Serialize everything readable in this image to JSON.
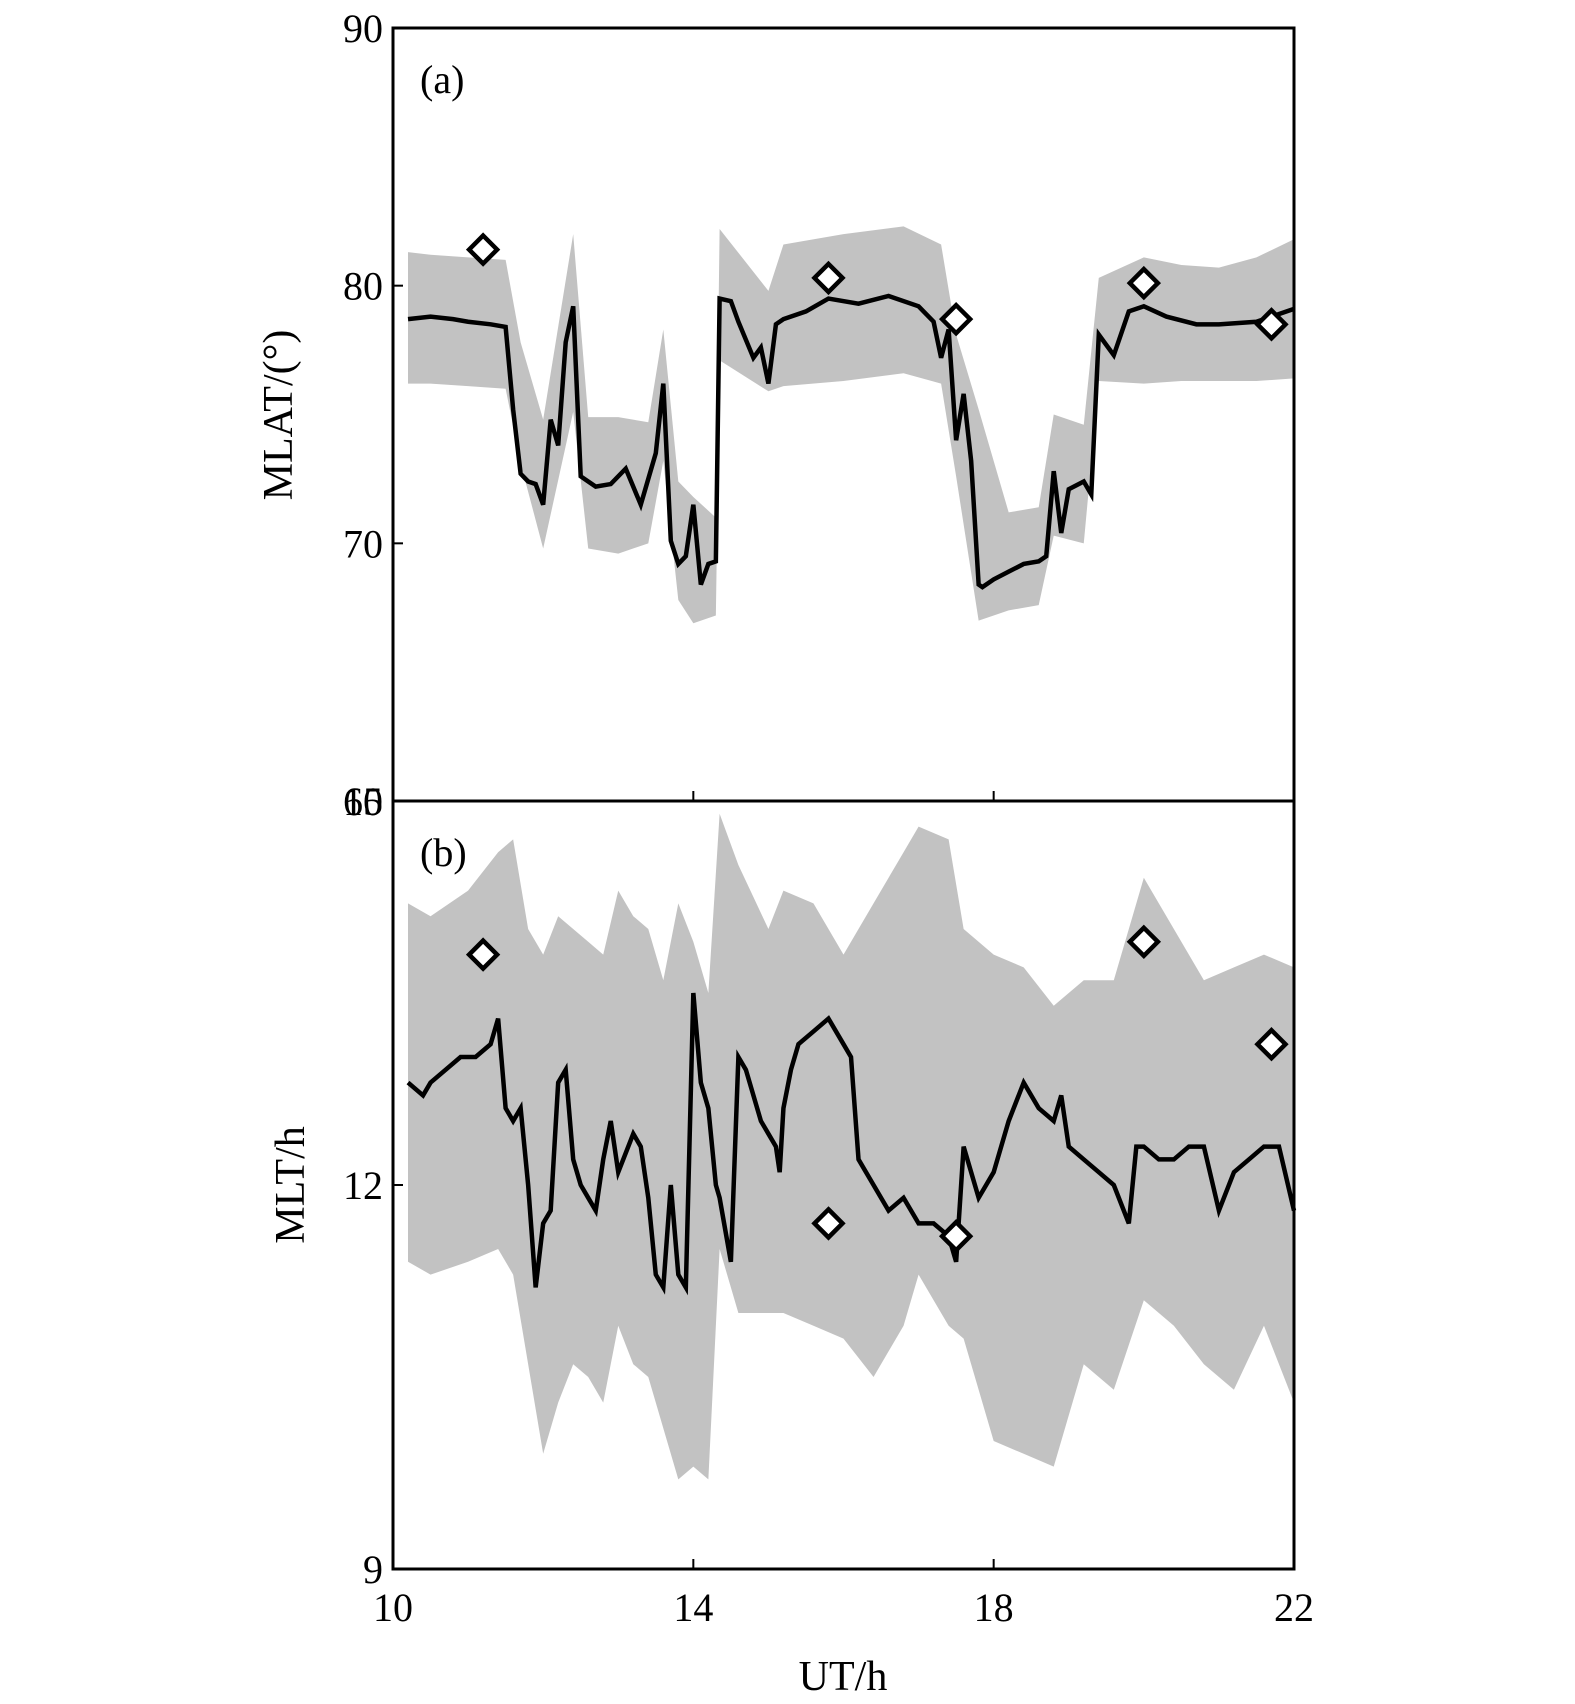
{
  "chart_data": [
    {
      "type": "line",
      "panel_label": "(a)",
      "xlabel": "",
      "ylabel": "MLAT/(°)",
      "xlim": [
        10,
        22
      ],
      "ylim": [
        60,
        90
      ],
      "yticks": [
        60,
        70,
        80,
        90
      ],
      "grid": false,
      "colors": {
        "line": "#000000",
        "band": "#c2c2c2",
        "marker": "#000000"
      },
      "series": [
        {
          "kind": "line",
          "x": [
            10.2,
            10.5,
            10.8,
            11.0,
            11.3,
            11.5,
            11.6,
            11.7,
            11.8,
            11.9,
            12.0,
            12.1,
            12.2,
            12.3,
            12.4,
            12.5,
            12.6,
            12.7,
            12.9,
            13.1,
            13.3,
            13.5,
            13.6,
            13.7,
            13.8,
            13.9,
            14.0,
            14.1,
            14.2,
            14.3,
            14.35,
            14.5,
            14.6,
            14.8,
            14.9,
            15.0,
            15.1,
            15.2,
            15.5,
            15.8,
            16.2,
            16.6,
            17.0,
            17.2,
            17.3,
            17.4,
            17.5,
            17.6,
            17.7,
            17.8,
            17.85,
            18.0,
            18.2,
            18.4,
            18.6,
            18.7,
            18.8,
            18.9,
            19.0,
            19.2,
            19.3,
            19.4,
            19.6,
            19.8,
            20.0,
            20.3,
            20.7,
            21.0,
            21.5,
            22.0
          ],
          "y": [
            78.7,
            78.8,
            78.7,
            78.6,
            78.5,
            78.4,
            75.2,
            72.7,
            72.4,
            72.3,
            71.5,
            74.8,
            73.8,
            77.8,
            79.2,
            72.6,
            72.4,
            72.2,
            72.3,
            72.9,
            71.5,
            73.5,
            76.2,
            70.1,
            69.2,
            69.5,
            71.5,
            68.4,
            69.2,
            69.3,
            79.5,
            79.4,
            78.6,
            77.2,
            77.6,
            76.2,
            78.5,
            78.7,
            79.0,
            79.5,
            79.3,
            79.6,
            79.2,
            78.6,
            77.2,
            78.3,
            74.0,
            75.8,
            73.2,
            68.4,
            68.3,
            68.6,
            68.9,
            69.2,
            69.3,
            69.5,
            72.8,
            70.4,
            72.1,
            72.4,
            71.9,
            78.1,
            77.3,
            79.0,
            79.2,
            78.8,
            78.5,
            78.5,
            78.6,
            79.1
          ]
        },
        {
          "kind": "band",
          "x": [
            10.2,
            10.5,
            11.0,
            11.5,
            11.7,
            12.0,
            12.4,
            12.6,
            13.0,
            13.4,
            13.6,
            13.8,
            14.0,
            14.3,
            14.35,
            15.0,
            15.2,
            16.0,
            16.8,
            17.3,
            17.5,
            17.8,
            18.2,
            18.6,
            18.8,
            19.2,
            19.4,
            20.0,
            20.5,
            21.0,
            21.5,
            22.0
          ],
          "upper": [
            81.3,
            81.2,
            81.1,
            81.0,
            77.8,
            74.8,
            82.0,
            74.9,
            74.9,
            74.7,
            78.3,
            72.4,
            71.8,
            71.0,
            82.2,
            79.8,
            81.6,
            82.0,
            82.3,
            81.6,
            78.1,
            75.2,
            71.2,
            71.4,
            75.0,
            74.6,
            80.3,
            81.1,
            80.8,
            80.7,
            81.1,
            81.8
          ],
          "lower": [
            76.2,
            76.2,
            76.1,
            76.0,
            73.1,
            69.8,
            75.1,
            69.8,
            69.6,
            70.0,
            73.2,
            67.8,
            66.9,
            67.2,
            77.1,
            75.9,
            76.1,
            76.3,
            76.6,
            76.2,
            72.6,
            67.0,
            67.4,
            67.6,
            70.3,
            70.0,
            76.3,
            76.2,
            76.3,
            76.3,
            76.3,
            76.4
          ]
        },
        {
          "kind": "markers",
          "marker": "diamond",
          "x": [
            11.2,
            15.8,
            17.5,
            20.0,
            21.7
          ],
          "y": [
            81.4,
            80.3,
            78.7,
            80.1,
            78.5
          ]
        }
      ]
    },
    {
      "type": "line",
      "panel_label": "(b)",
      "xlabel": "UT/h",
      "ylabel": "MLT/h",
      "xlim": [
        10,
        22
      ],
      "ylim": [
        9,
        15
      ],
      "xticks": [
        10,
        14,
        18,
        22
      ],
      "yticks": [
        9,
        12,
        15
      ],
      "grid": false,
      "colors": {
        "line": "#000000",
        "band": "#c2c2c2",
        "marker": "#000000"
      },
      "series": [
        {
          "kind": "line",
          "x": [
            10.2,
            10.4,
            10.5,
            10.7,
            10.9,
            11.1,
            11.3,
            11.4,
            11.5,
            11.6,
            11.7,
            11.8,
            11.9,
            12.0,
            12.1,
            12.2,
            12.3,
            12.4,
            12.5,
            12.6,
            12.7,
            12.8,
            12.9,
            13.0,
            13.2,
            13.3,
            13.4,
            13.5,
            13.6,
            13.7,
            13.8,
            13.9,
            14.0,
            14.1,
            14.2,
            14.3,
            14.35,
            14.5,
            14.6,
            14.7,
            14.8,
            14.9,
            15.0,
            15.1,
            15.15,
            15.2,
            15.3,
            15.4,
            15.6,
            15.8,
            16.0,
            16.1,
            16.2,
            16.4,
            16.6,
            16.8,
            17.0,
            17.2,
            17.4,
            17.5,
            17.6,
            17.8,
            17.9,
            18.0,
            18.2,
            18.4,
            18.6,
            18.8,
            18.9,
            19.0,
            19.2,
            19.4,
            19.6,
            19.8,
            19.9,
            20.0,
            20.2,
            20.4,
            20.6,
            20.8,
            21.0,
            21.2,
            21.4,
            21.6,
            21.8,
            22.0
          ],
          "y": [
            12.8,
            12.7,
            12.8,
            12.9,
            13.0,
            13.0,
            13.1,
            13.3,
            12.6,
            12.5,
            12.6,
            12.0,
            11.2,
            11.7,
            11.8,
            12.8,
            12.9,
            12.2,
            12.0,
            11.9,
            11.8,
            12.2,
            12.5,
            12.1,
            12.4,
            12.3,
            11.9,
            11.3,
            11.2,
            12.0,
            11.3,
            11.2,
            13.5,
            12.8,
            12.6,
            12.0,
            11.9,
            11.4,
            13.0,
            12.9,
            12.7,
            12.5,
            12.4,
            12.3,
            12.1,
            12.6,
            12.9,
            13.1,
            13.2,
            13.3,
            13.1,
            13.0,
            12.2,
            12.0,
            11.8,
            11.9,
            11.7,
            11.7,
            11.6,
            11.4,
            12.3,
            11.9,
            12.0,
            12.1,
            12.5,
            12.8,
            12.6,
            12.5,
            12.7,
            12.3,
            12.2,
            12.1,
            12.0,
            11.7,
            12.3,
            12.3,
            12.2,
            12.2,
            12.3,
            12.3,
            11.8,
            12.1,
            12.2,
            12.3,
            12.3,
            11.8
          ],
          "x_reset_note": ""
        },
        {
          "kind": "band",
          "x": [
            10.2,
            10.5,
            11.0,
            11.4,
            11.6,
            11.8,
            12.0,
            12.2,
            12.4,
            12.6,
            12.8,
            13.0,
            13.2,
            13.4,
            13.6,
            13.8,
            14.0,
            14.2,
            14.35,
            14.6,
            15.0,
            15.2,
            15.6,
            16.0,
            16.4,
            16.8,
            17.0,
            17.4,
            17.6,
            18.0,
            18.4,
            18.8,
            19.2,
            19.6,
            20.0,
            20.4,
            20.8,
            21.2,
            21.6,
            22.0
          ],
          "upper": [
            14.2,
            14.1,
            14.3,
            14.6,
            14.7,
            14.0,
            13.8,
            14.1,
            14.0,
            13.9,
            13.8,
            14.3,
            14.1,
            14.0,
            13.6,
            14.2,
            13.9,
            13.5,
            14.9,
            14.5,
            14.0,
            14.3,
            14.2,
            13.8,
            14.2,
            14.6,
            14.8,
            14.7,
            14.0,
            13.8,
            13.7,
            13.4,
            13.6,
            13.6,
            14.4,
            14.0,
            13.6,
            13.7,
            13.8,
            13.7
          ],
          "lower": [
            11.4,
            11.3,
            11.4,
            11.5,
            11.3,
            10.6,
            9.9,
            10.3,
            10.6,
            10.5,
            10.3,
            10.9,
            10.6,
            10.5,
            10.1,
            9.7,
            9.8,
            9.7,
            11.5,
            11.0,
            11.0,
            11.0,
            10.9,
            10.8,
            10.5,
            10.9,
            11.3,
            10.9,
            10.8,
            10.0,
            9.9,
            9.8,
            10.6,
            10.4,
            11.1,
            10.9,
            10.6,
            10.4,
            10.9,
            10.3
          ]
        },
        {
          "kind": "markers",
          "marker": "diamond",
          "x": [
            11.2,
            15.8,
            17.5,
            20.0,
            21.7
          ],
          "y": [
            13.8,
            11.7,
            11.6,
            13.9,
            13.1
          ]
        }
      ]
    }
  ]
}
